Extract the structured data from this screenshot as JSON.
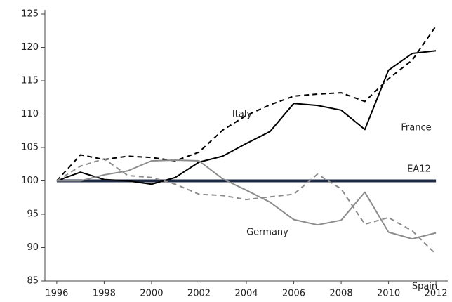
{
  "chart_data": {
    "type": "line",
    "x": [
      1996,
      1997,
      1998,
      1999,
      2000,
      2001,
      2002,
      2003,
      2004,
      2005,
      2006,
      2007,
      2008,
      2009,
      2010,
      2011,
      2012
    ],
    "series": [
      {
        "name": "France",
        "color": "#000000",
        "style": "solid",
        "values": [
          100,
          101.3,
          100.2,
          100,
          99.5,
          100.5,
          102.8,
          103.7,
          105.6,
          107.4,
          111.6,
          111.3,
          110.6,
          107.7,
          116.6,
          119.1,
          119.5
        ]
      },
      {
        "name": "Italy",
        "color": "#000000",
        "style": "dashed",
        "values": [
          100,
          103.9,
          103.2,
          103.7,
          103.5,
          103,
          104.3,
          107.6,
          109.8,
          111.4,
          112.7,
          113.0,
          113.2,
          111.9,
          115.3,
          118.1,
          123.2
        ]
      },
      {
        "name": "Germany",
        "color": "#8c8c8c",
        "style": "solid",
        "values": [
          100,
          100,
          100.9,
          101.5,
          103,
          103.1,
          103,
          100.3,
          98.6,
          96.8,
          94.2,
          93.4,
          94.1,
          98.3,
          92.3,
          91.3,
          92.2
        ]
      },
      {
        "name": "Spain",
        "color": "#8c8c8c",
        "style": "dashed",
        "values": [
          100,
          102.2,
          103.3,
          100.8,
          100.5,
          99.5,
          98.0,
          97.8,
          97.2,
          97.6,
          98.0,
          101.0,
          98.8,
          93.5,
          94.5,
          92.5,
          89
        ]
      },
      {
        "name": "EA12",
        "color": "#1c2a44",
        "style": "bold",
        "values": [
          100,
          100,
          100,
          100,
          100,
          100,
          100,
          100,
          100,
          100,
          100,
          100,
          100,
          100,
          100,
          100,
          100
        ]
      }
    ],
    "xlim": [
      1995.5,
      2012.5
    ],
    "xticks": [
      1996,
      1998,
      2000,
      2002,
      2004,
      2006,
      2008,
      2010,
      2012
    ],
    "ylim": [
      85,
      125
    ],
    "yticks": [
      85,
      90,
      95,
      100,
      105,
      110,
      115,
      120,
      125
    ]
  }
}
